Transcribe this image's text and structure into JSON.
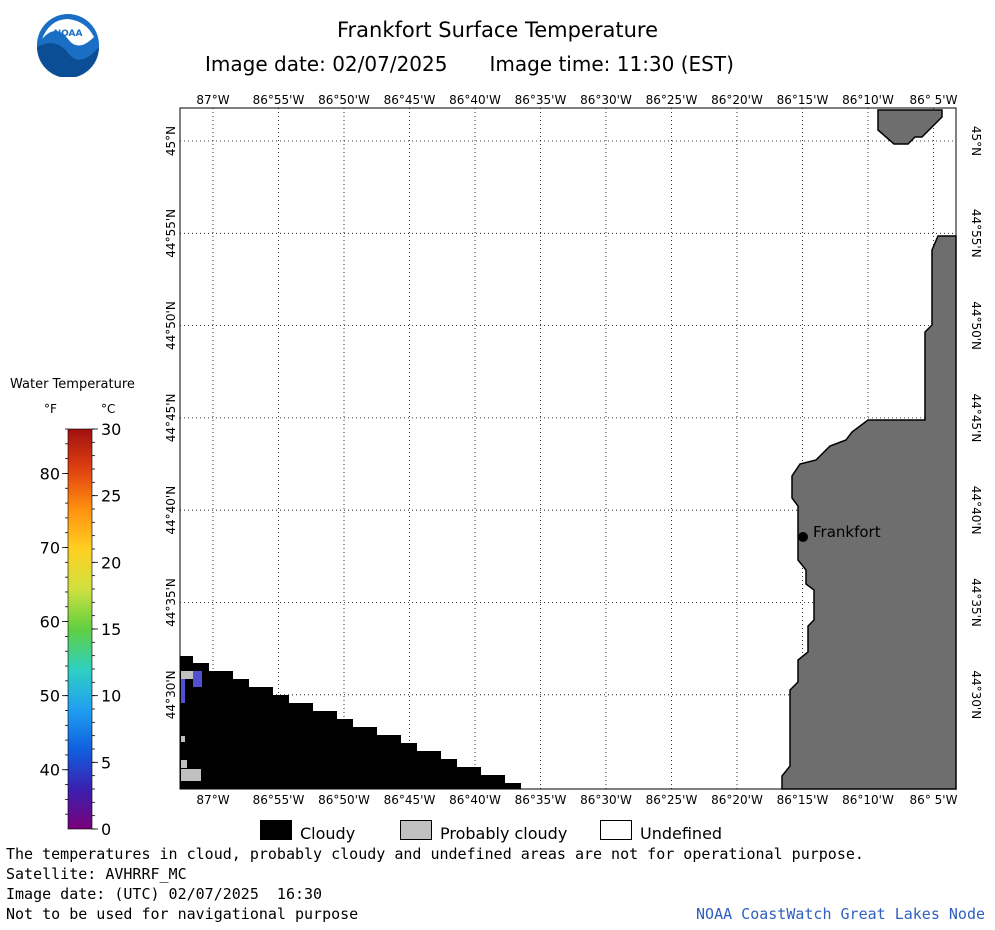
{
  "header": {
    "title": "Frankfort Surface Temperature",
    "image_date": "Image date: 02/07/2025",
    "image_time": "Image time: 11:30 (EST)",
    "logo_text": "NOAA"
  },
  "map": {
    "lon_labels": [
      "87°W",
      "86°55'W",
      "86°50'W",
      "86°45'W",
      "86°40'W",
      "86°35'W",
      "86°30'W",
      "86°25'W",
      "86°20'W",
      "86°15'W",
      "86°10'W",
      "86° 5'W"
    ],
    "lat_labels": [
      "45°N",
      "44°55'N",
      "44°50'N",
      "44°45'N",
      "44°40'N",
      "44°35'N",
      "44°30'N"
    ],
    "city_label": "Frankfort",
    "colors": {
      "land": "#6e6e6e",
      "cloud": "#000000",
      "probably_cloudy": "#c0c0c0",
      "undefined": "#ffffff",
      "cold_water": "#5050d0"
    }
  },
  "legend": {
    "title": "Water Temperature",
    "unit_f": "°F",
    "unit_c": "°C",
    "f_labels": [
      "80",
      "70",
      "60",
      "50",
      "40"
    ],
    "c_labels": [
      "30",
      "25",
      "20",
      "15",
      "10",
      "5",
      "0"
    ],
    "scale_c_range": [
      0,
      30
    ],
    "colors": [
      "#7a007a",
      "#3a20b0",
      "#1060e0",
      "#20a0f0",
      "#30d0c0",
      "#60d040",
      "#d0e040",
      "#ffd020",
      "#ff9010",
      "#e04010",
      "#a01010"
    ]
  },
  "key": {
    "cloudy": "Cloudy",
    "probably_cloudy": "Probably cloudy",
    "undefined": "Undefined"
  },
  "footer": {
    "line1": "The temperatures in cloud, probably cloudy and undefined areas are not for operational purpose.",
    "line2": "Satellite: AVHRRF_MC",
    "line3": "Image date: (UTC) 02/07/2025  16:30",
    "line4": "Not to be used for navigational purpose",
    "credit": "NOAA CoastWatch Great Lakes Node"
  }
}
